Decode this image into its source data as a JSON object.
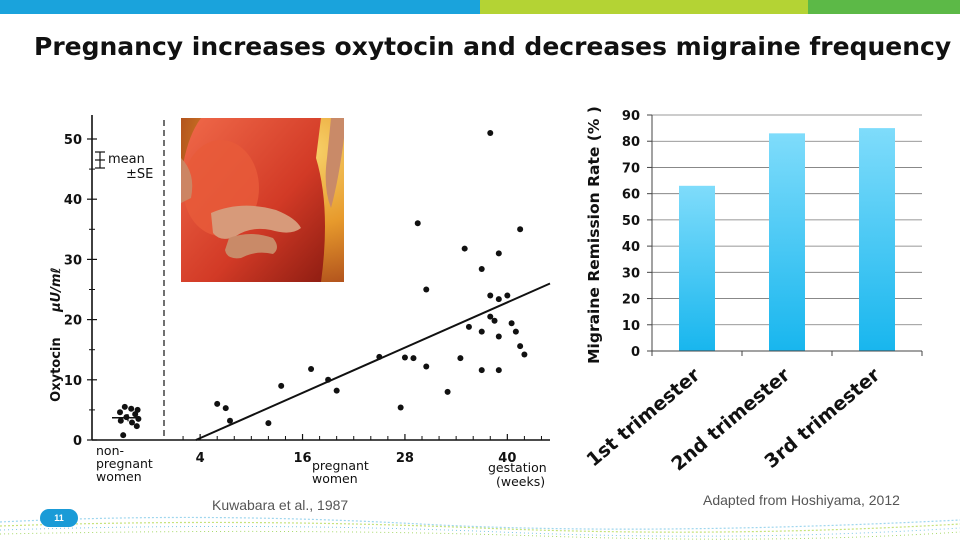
{
  "slide": {
    "title": "Pregnancy increases oxytocin and decreases migraine frequency",
    "slide_number": "11",
    "top_bar_colors": [
      "#1aa3dc",
      "#b4d334",
      "#5cb947"
    ]
  },
  "captions": {
    "left": "Kuwabara et al., 1987",
    "right": "Adapted from Hoshiyama, 2012"
  },
  "photo": {
    "description_icon": "pregnant-woman-photo"
  },
  "chart_data": [
    {
      "type": "scatter",
      "title": "",
      "ylabel_text": "Oxytocin",
      "ylabel_unit": "μU/mℓ",
      "xlabel": "gestation",
      "xlabel_unit": "(weeks)",
      "ylim": [
        0,
        54
      ],
      "xlim": [
        0,
        45
      ],
      "yticks": [
        0,
        10,
        20,
        30,
        40,
        50
      ],
      "xticks": [
        4,
        16,
        28,
        40
      ],
      "legend_mean": "mean",
      "legend_se": "±SE",
      "group_labels": {
        "nonpregnant": [
          "non-",
          "pregnant",
          "women"
        ],
        "pregnant": [
          "pregnant",
          "women"
        ]
      },
      "nonpregnant_points": [
        5.5,
        5.2,
        5.0,
        4.6,
        4.3,
        3.8,
        3.5,
        3.2,
        2.9,
        2.3,
        0.8
      ],
      "nonpregnant_mean": 3.7,
      "nonpregnant_se": 0.6,
      "pregnant_points": [
        {
          "x": 6,
          "y": 6
        },
        {
          "x": 7,
          "y": 5.3
        },
        {
          "x": 7.5,
          "y": 3.2
        },
        {
          "x": 12,
          "y": 2.8
        },
        {
          "x": 13.5,
          "y": 9
        },
        {
          "x": 17,
          "y": 11.8
        },
        {
          "x": 19,
          "y": 10
        },
        {
          "x": 20,
          "y": 8.2
        },
        {
          "x": 25,
          "y": 13.8
        },
        {
          "x": 27.5,
          "y": 5.4
        },
        {
          "x": 28,
          "y": 13.7
        },
        {
          "x": 29,
          "y": 13.6
        },
        {
          "x": 29.5,
          "y": 36
        },
        {
          "x": 30.5,
          "y": 12.2
        },
        {
          "x": 30.5,
          "y": 25
        },
        {
          "x": 33,
          "y": 8
        },
        {
          "x": 35,
          "y": 31.8
        },
        {
          "x": 34.5,
          "y": 13.6
        },
        {
          "x": 35.5,
          "y": 18.8
        },
        {
          "x": 37,
          "y": 18
        },
        {
          "x": 37,
          "y": 28.4
        },
        {
          "x": 37,
          "y": 11.6
        },
        {
          "x": 38,
          "y": 51
        },
        {
          "x": 38,
          "y": 24
        },
        {
          "x": 38,
          "y": 20.5
        },
        {
          "x": 38.5,
          "y": 19.8
        },
        {
          "x": 39,
          "y": 23.4
        },
        {
          "x": 39,
          "y": 17.2
        },
        {
          "x": 39,
          "y": 11.6
        },
        {
          "x": 39,
          "y": 31
        },
        {
          "x": 40,
          "y": 24
        },
        {
          "x": 40.5,
          "y": 19.4
        },
        {
          "x": 41,
          "y": 18
        },
        {
          "x": 41.5,
          "y": 35
        },
        {
          "x": 41.5,
          "y": 15.6
        },
        {
          "x": 42,
          "y": 14.2
        }
      ],
      "regression_line": {
        "x1": 3.5,
        "y1": 0,
        "x2": 45,
        "y2": 26
      }
    },
    {
      "type": "bar",
      "title": "",
      "ylabel": "Migraine Remission Rate (% )",
      "xlabel": "",
      "categories": [
        "1st trimester",
        "2nd trimester",
        "3rd trimester"
      ],
      "values": [
        63,
        83,
        85
      ],
      "ylim": [
        0,
        90
      ],
      "yticks": [
        0,
        10,
        20,
        30,
        40,
        50,
        60,
        70,
        80,
        90
      ],
      "grid": true,
      "bar_color_top": "#7fdcfb",
      "bar_color_bottom": "#18b6ee"
    }
  ]
}
